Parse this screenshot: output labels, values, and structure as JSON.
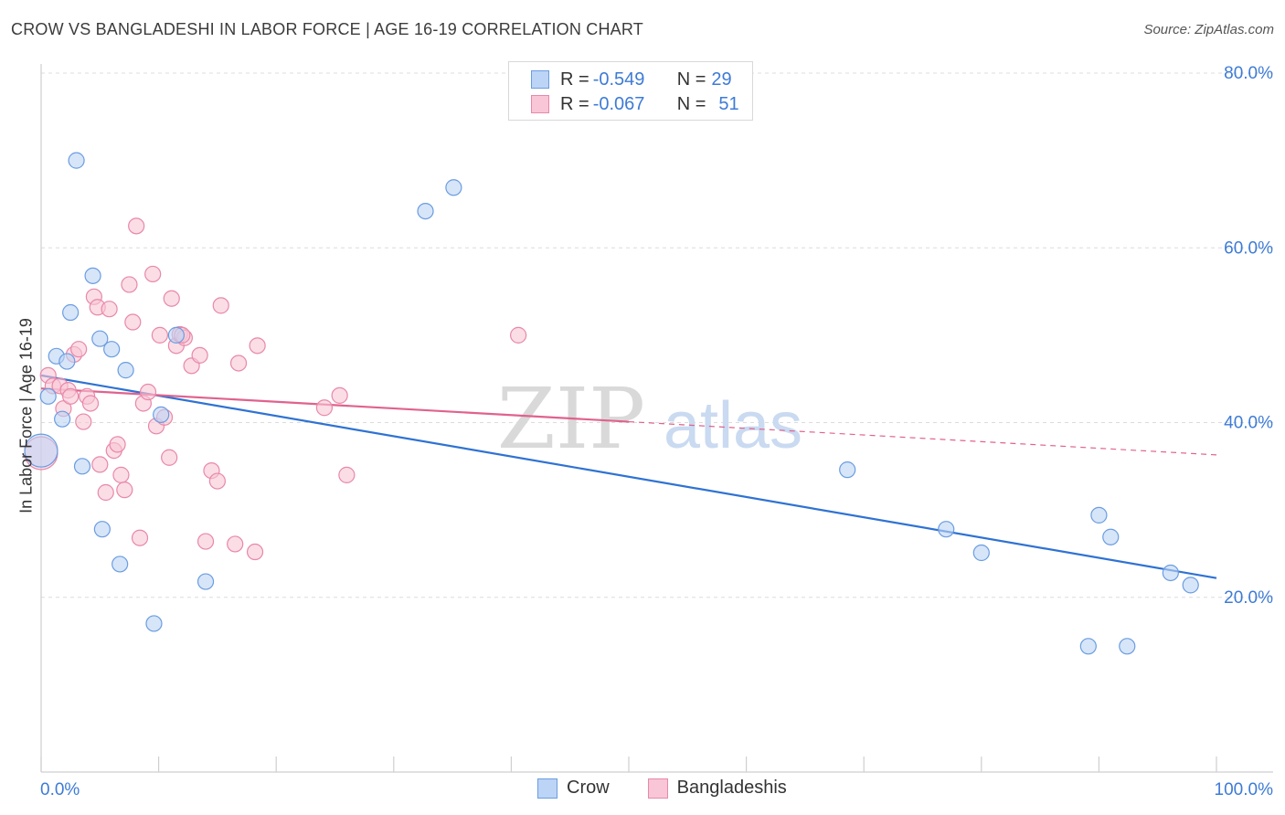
{
  "header": {
    "title": "CROW VS BANGLADESHI IN LABOR FORCE | AGE 16-19 CORRELATION CHART",
    "source": "Source: ZipAtlas.com"
  },
  "watermark": {
    "zip": "ZIP",
    "atlas": "atlas"
  },
  "legend_top": {
    "row1": {
      "r_label": "R = ",
      "r_value": "-0.549",
      "n_label": "N = ",
      "n_value": "29"
    },
    "row2": {
      "r_label": "R = ",
      "r_value": "-0.067",
      "n_label": "N = ",
      "n_value": "51"
    }
  },
  "colors": {
    "crow_fill": "#bcd4f5",
    "crow_stroke": "#6a9de0",
    "crow_line": "#2f72d3",
    "bang_fill": "#f8c6d6",
    "bang_stroke": "#e888a8",
    "bang_line": "#e0628e",
    "grid": "#dcdcdc",
    "axis_text": "#3d7bd6"
  },
  "chart_data": {
    "type": "scatter",
    "title": "CROW VS BANGLADESHI IN LABOR FORCE | AGE 16-19 CORRELATION CHART",
    "xlabel": "",
    "ylabel": "In Labor Force | Age 16-19",
    "xlim": [
      0,
      100
    ],
    "ylim": [
      0,
      80
    ],
    "x_tick_labels": [
      {
        "value": 0,
        "label": "0.0%"
      },
      {
        "value": 100,
        "label": "100.0%"
      }
    ],
    "y_tick_labels": [
      {
        "value": 20,
        "label": "20.0%"
      },
      {
        "value": 40,
        "label": "40.0%"
      },
      {
        "value": 60,
        "label": "60.0%"
      },
      {
        "value": 80,
        "label": "80.0%"
      }
    ],
    "legend": [
      "Crow",
      "Bangladeshis"
    ],
    "series": [
      {
        "name": "Crow",
        "r": -0.549,
        "n": 29,
        "trend": {
          "x": [
            0,
            100
          ],
          "y": [
            45.4,
            22.2
          ],
          "solid_until": 100
        },
        "points": [
          {
            "x": 0,
            "y": 36.8,
            "big": true
          },
          {
            "x": 0.6,
            "y": 43.0
          },
          {
            "x": 1.3,
            "y": 47.6
          },
          {
            "x": 1.8,
            "y": 40.4
          },
          {
            "x": 2.2,
            "y": 47.0
          },
          {
            "x": 2.5,
            "y": 52.6
          },
          {
            "x": 3.0,
            "y": 70.0
          },
          {
            "x": 3.5,
            "y": 35.0
          },
          {
            "x": 4.4,
            "y": 56.8
          },
          {
            "x": 5.0,
            "y": 49.6
          },
          {
            "x": 5.2,
            "y": 27.8
          },
          {
            "x": 6.0,
            "y": 48.4
          },
          {
            "x": 6.7,
            "y": 23.8
          },
          {
            "x": 7.2,
            "y": 46.0
          },
          {
            "x": 9.6,
            "y": 17.0
          },
          {
            "x": 10.2,
            "y": 40.9
          },
          {
            "x": 11.5,
            "y": 50.0
          },
          {
            "x": 14.0,
            "y": 21.8
          },
          {
            "x": 32.7,
            "y": 64.2
          },
          {
            "x": 35.1,
            "y": 66.9
          },
          {
            "x": 68.6,
            "y": 34.6
          },
          {
            "x": 77.0,
            "y": 27.8
          },
          {
            "x": 80.0,
            "y": 25.1
          },
          {
            "x": 89.1,
            "y": 14.4
          },
          {
            "x": 90.0,
            "y": 29.4
          },
          {
            "x": 91.0,
            "y": 26.9
          },
          {
            "x": 92.4,
            "y": 14.4
          },
          {
            "x": 96.1,
            "y": 22.8
          },
          {
            "x": 97.8,
            "y": 21.4
          }
        ]
      },
      {
        "name": "Bangladeshis",
        "r": -0.067,
        "n": 51,
        "trend": {
          "x": [
            0,
            100
          ],
          "y": [
            43.9,
            36.3
          ],
          "solid_until": 50
        },
        "points": [
          {
            "x": 0,
            "y": 36.5,
            "big": true
          },
          {
            "x": 0.6,
            "y": 45.4
          },
          {
            "x": 1.0,
            "y": 44.2
          },
          {
            "x": 1.6,
            "y": 44.2
          },
          {
            "x": 1.9,
            "y": 41.6
          },
          {
            "x": 2.3,
            "y": 43.7
          },
          {
            "x": 2.5,
            "y": 43.0
          },
          {
            "x": 2.8,
            "y": 47.8
          },
          {
            "x": 3.2,
            "y": 48.4
          },
          {
            "x": 3.6,
            "y": 40.1
          },
          {
            "x": 3.9,
            "y": 43.0
          },
          {
            "x": 4.2,
            "y": 42.2
          },
          {
            "x": 4.5,
            "y": 54.4
          },
          {
            "x": 4.8,
            "y": 53.2
          },
          {
            "x": 5.0,
            "y": 35.2
          },
          {
            "x": 5.5,
            "y": 32.0
          },
          {
            "x": 5.8,
            "y": 53.0
          },
          {
            "x": 6.2,
            "y": 36.8
          },
          {
            "x": 6.5,
            "y": 37.5
          },
          {
            "x": 6.8,
            "y": 34.0
          },
          {
            "x": 7.1,
            "y": 32.3
          },
          {
            "x": 7.5,
            "y": 55.8
          },
          {
            "x": 7.8,
            "y": 51.5
          },
          {
            "x": 8.1,
            "y": 62.5
          },
          {
            "x": 8.4,
            "y": 26.8
          },
          {
            "x": 8.7,
            "y": 42.2
          },
          {
            "x": 9.1,
            "y": 43.5
          },
          {
            "x": 9.5,
            "y": 57.0
          },
          {
            "x": 9.8,
            "y": 39.6
          },
          {
            "x": 10.1,
            "y": 50.0
          },
          {
            "x": 10.5,
            "y": 40.6
          },
          {
            "x": 10.9,
            "y": 36.0
          },
          {
            "x": 11.1,
            "y": 54.2
          },
          {
            "x": 11.5,
            "y": 48.8
          },
          {
            "x": 11.8,
            "y": 50.1
          },
          {
            "x": 12.2,
            "y": 49.7
          },
          {
            "x": 12.8,
            "y": 46.5
          },
          {
            "x": 13.5,
            "y": 47.7
          },
          {
            "x": 14.0,
            "y": 26.4
          },
          {
            "x": 14.5,
            "y": 34.5
          },
          {
            "x": 15.0,
            "y": 33.3
          },
          {
            "x": 15.3,
            "y": 53.4
          },
          {
            "x": 16.5,
            "y": 26.1
          },
          {
            "x": 16.8,
            "y": 46.8
          },
          {
            "x": 18.2,
            "y": 25.2
          },
          {
            "x": 18.4,
            "y": 48.8
          },
          {
            "x": 24.1,
            "y": 41.7
          },
          {
            "x": 25.4,
            "y": 43.1
          },
          {
            "x": 26.0,
            "y": 34.0
          },
          {
            "x": 40.6,
            "y": 50.0
          },
          {
            "x": 12.0,
            "y": 50.0
          }
        ]
      }
    ]
  }
}
